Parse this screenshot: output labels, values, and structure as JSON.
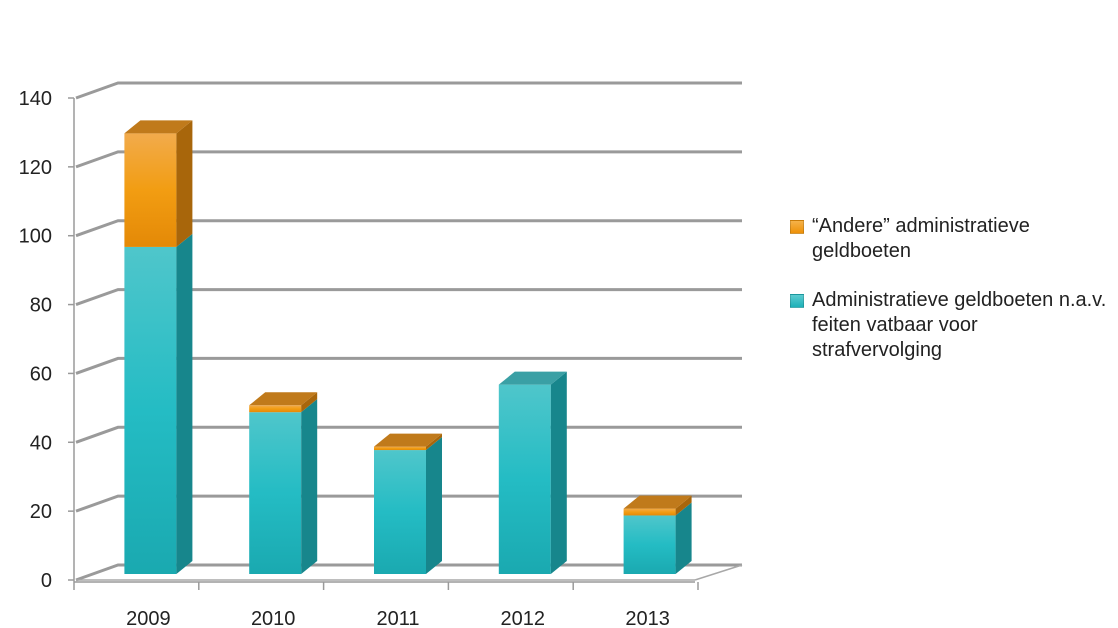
{
  "chart_data": {
    "type": "bar",
    "stacked": true,
    "three_d": true,
    "categories": [
      "2009",
      "2010",
      "2011",
      "2012",
      "2013"
    ],
    "series": [
      {
        "name": "Administratieve geldboeten n.a.v. feiten vatbaar voor strafvervolging",
        "color": "#20b8bf",
        "values": [
          95,
          47,
          36,
          55,
          17
        ]
      },
      {
        "name": "“Andere” administratieve geldboeten",
        "color": "#f39a12",
        "values": [
          33,
          2,
          1,
          0,
          2
        ]
      }
    ],
    "ylim": [
      0,
      140
    ],
    "yticks": [
      "0",
      "20",
      "40",
      "60",
      "80",
      "100",
      "120",
      "140"
    ],
    "grid": true,
    "legend_position": "right"
  }
}
